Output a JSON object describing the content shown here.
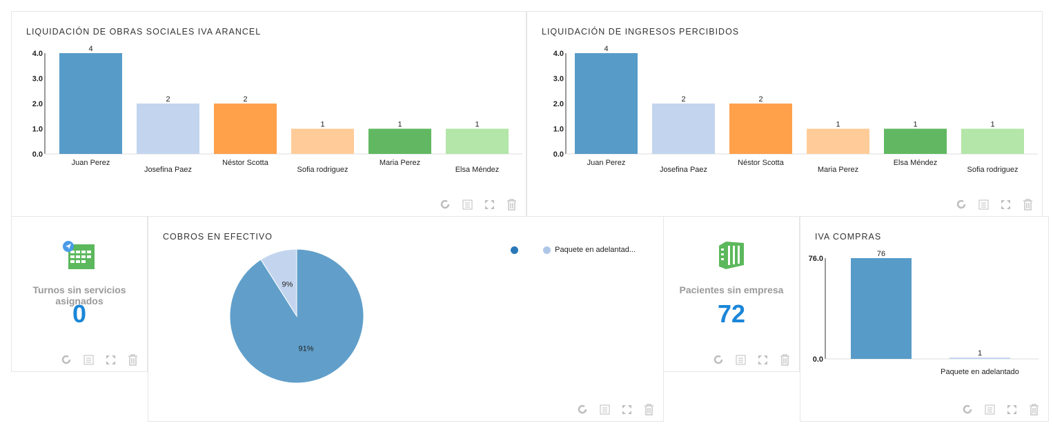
{
  "colors": {
    "kpi": "#1a86d8",
    "icon_green": "#5cb85c",
    "tool": "#bdbdbd"
  },
  "tools": [
    "refresh-icon",
    "list-icon",
    "expand-icon",
    "trash-icon"
  ],
  "panel1": {
    "title": "LIQUIDACIÓN DE OBRAS SOCIALES IVA ARANCEL"
  },
  "panel2": {
    "title": "LIQUIDACIÓN DE INGRESOS PERCIBIDOS"
  },
  "panel3": {
    "label": "Turnos sin servicios asignados",
    "value": "0"
  },
  "panel4": {
    "title": "COBROS EN EFECTIVO",
    "legend": [
      "",
      "Paquete en adelantad..."
    ]
  },
  "panel5": {
    "label": "Pacientes sin empresa",
    "value": "72"
  },
  "panel6": {
    "title": "IVA COMPRAS"
  },
  "chart_data": [
    {
      "type": "bar",
      "title": "LIQUIDACIÓN DE OBRAS SOCIALES IVA ARANCEL",
      "categories": [
        "Juan Perez",
        "Josefina Paez",
        "Néstor Scotta",
        "Sofia rodriguez",
        "Maria Perez",
        "Elsa Méndez"
      ],
      "values": [
        4,
        2,
        2,
        1,
        1,
        1
      ],
      "colors": [
        "#579bc8",
        "#c3d5ee",
        "#ffa04b",
        "#ffcc99",
        "#62b862",
        "#b3e6a8"
      ],
      "yticks": [
        "0.0",
        "1.0",
        "2.0",
        "3.0",
        "4.0"
      ],
      "ylim": [
        0,
        4
      ]
    },
    {
      "type": "bar",
      "title": "LIQUIDACIÓN DE INGRESOS PERCIBIDOS",
      "categories": [
        "Juan Perez",
        "Josefina Paez",
        "Néstor Scotta",
        "Maria Perez",
        "Elsa Méndez",
        "Sofia rodriguez"
      ],
      "values": [
        4,
        2,
        2,
        1,
        1,
        1
      ],
      "colors": [
        "#579bc8",
        "#c3d5ee",
        "#ffa04b",
        "#ffcc99",
        "#62b862",
        "#b3e6a8"
      ],
      "yticks": [
        "0.0",
        "1.0",
        "2.0",
        "3.0",
        "4.0"
      ],
      "ylim": [
        0,
        4
      ]
    },
    {
      "type": "pie",
      "title": "COBROS EN EFECTIVO",
      "slices": [
        {
          "label": "",
          "value": 91,
          "text": "91%",
          "color": "#619fca"
        },
        {
          "label": "Paquete en adelantad...",
          "value": 9,
          "text": "9%",
          "color": "#c3d5ee"
        }
      ]
    },
    {
      "type": "bar",
      "title": "IVA COMPRAS",
      "categories": [
        "",
        "Paquete en adelantado"
      ],
      "values": [
        76,
        1
      ],
      "colors": [
        "#579bc8",
        "#c3d5ee"
      ],
      "yticks": [
        "0.0",
        "76.0"
      ],
      "ylim": [
        0,
        76
      ]
    }
  ]
}
